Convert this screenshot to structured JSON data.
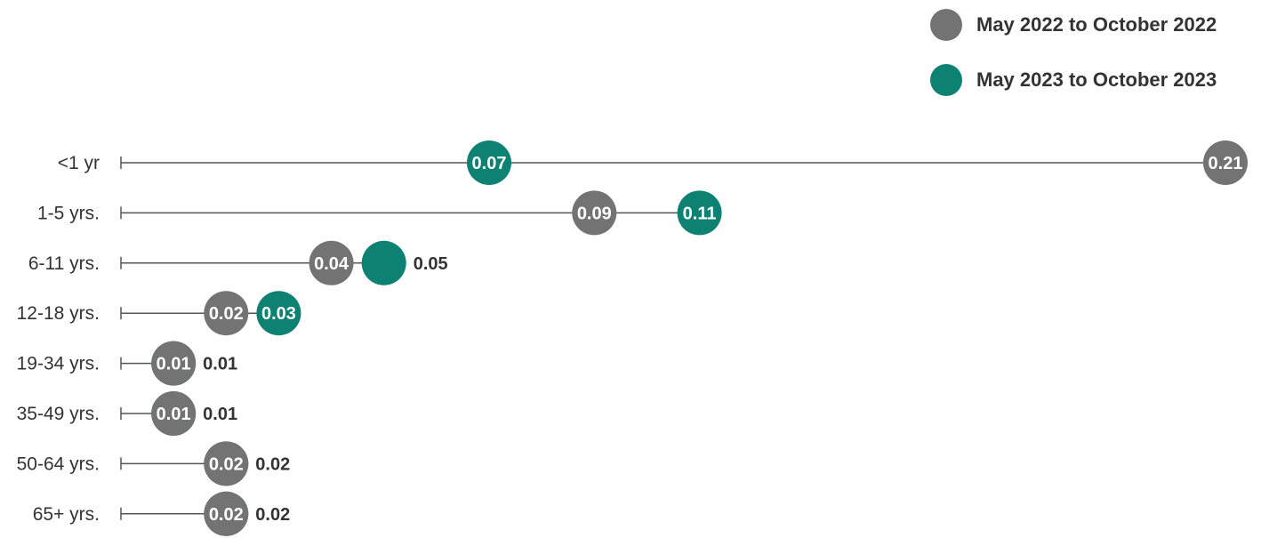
{
  "colors": {
    "series_2022": "#737373",
    "series_2023": "#0d8172",
    "line": "#555555",
    "text": "#333333"
  },
  "legend": {
    "items": [
      {
        "label": "May 2022 to October 2022",
        "color": "#737373"
      },
      {
        "label": "May 2023 to October 2023",
        "color": "#0d8172"
      }
    ]
  },
  "chart_data": {
    "type": "scatter",
    "subtype": "dot-plot",
    "title": "",
    "xlabel": "",
    "ylabel": "",
    "xlim": [
      0,
      0.21
    ],
    "grid": false,
    "legend_position": "top-right",
    "categories": [
      "<1 yr",
      "1-5 yrs.",
      "6-11 yrs.",
      "12-18 yrs.",
      "19-34 yrs.",
      "35-49 yrs.",
      "50-64 yrs.",
      "65+ yrs."
    ],
    "series": [
      {
        "name": "May 2022 to October 2022",
        "values": [
          0.21,
          0.09,
          0.04,
          0.02,
          0.01,
          0.01,
          0.02,
          0.02
        ]
      },
      {
        "name": "May 2023 to October 2023",
        "values": [
          0.07,
          0.11,
          0.05,
          0.03,
          0.01,
          0.01,
          0.02,
          0.02
        ]
      }
    ],
    "series_labels": [
      [
        "0.21",
        "0.09",
        "0.04",
        "0.02",
        "0.01",
        "",
        "0.02",
        "0.02"
      ],
      [
        "0.07",
        "0.11",
        "",
        "0.03",
        "",
        "0.01",
        "",
        ""
      ]
    ],
    "outside_labels": [
      "",
      "",
      "0.05",
      "",
      "0.01",
      "0.01",
      "0.02",
      "0.02"
    ]
  }
}
